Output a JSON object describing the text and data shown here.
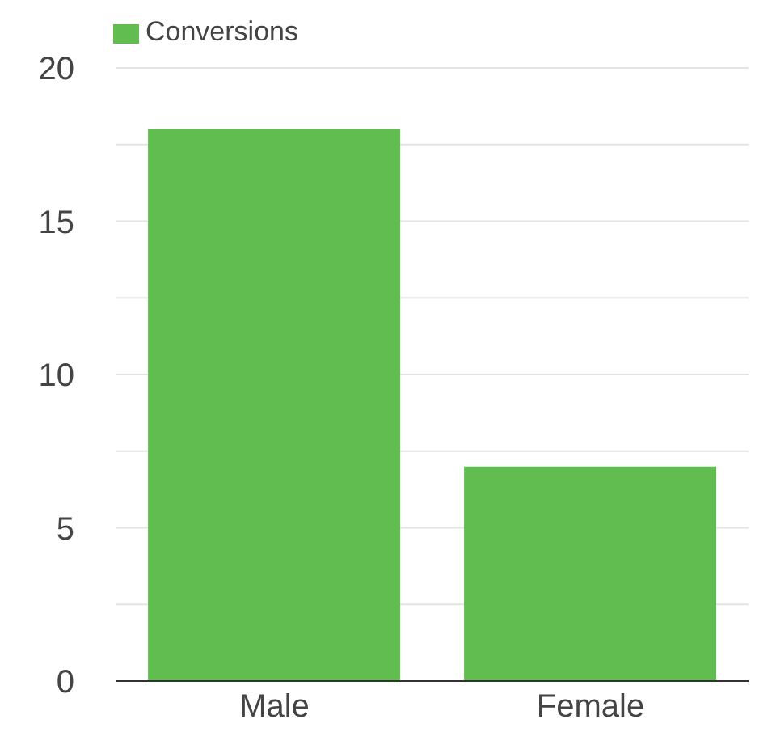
{
  "chart_data": {
    "type": "bar",
    "categories": [
      "Male",
      "Female"
    ],
    "series": [
      {
        "name": "Conversions",
        "color": "#62bd51",
        "values": [
          18,
          7
        ]
      }
    ],
    "ylim": [
      0,
      20
    ],
    "yticks": [
      0,
      {
        "value": 2.5,
        "label": null
      },
      5,
      {
        "value": 7.5,
        "label": null
      },
      10,
      {
        "value": 12.5,
        "label": null
      },
      15,
      {
        "value": 17.5,
        "label": null
      },
      20
    ],
    "grid": "y",
    "legend": "top left"
  }
}
